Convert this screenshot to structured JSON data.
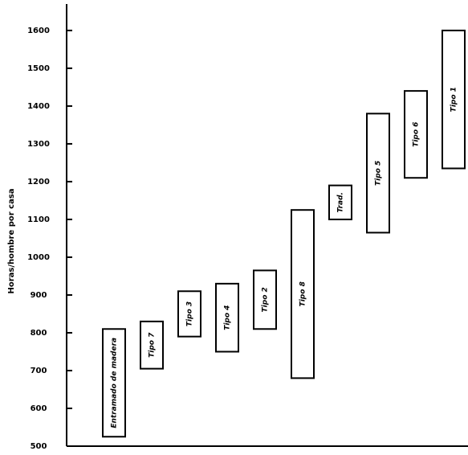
{
  "chart_data": {
    "type": "floating-bar",
    "y_label": "Horas/hombre por casa",
    "categories": [
      "Entramado de madera",
      "Tipo 7",
      "Tipo 3",
      "Tipo 4",
      "Tipo 2",
      "Tipo 8",
      "Trad.",
      "Tipo 5",
      "Tipo 6",
      "Tipo 1"
    ],
    "low": [
      525,
      705,
      790,
      750,
      810,
      680,
      1100,
      1065,
      1210,
      1235
    ],
    "high": [
      810,
      830,
      910,
      930,
      965,
      1125,
      1190,
      1380,
      1440,
      1600
    ],
    "color": "#000000",
    "ylim": [
      500,
      1670
    ],
    "yticks": [
      500,
      600,
      700,
      800,
      900,
      1000,
      1100,
      1200,
      1300,
      1400,
      1500,
      1600
    ]
  }
}
